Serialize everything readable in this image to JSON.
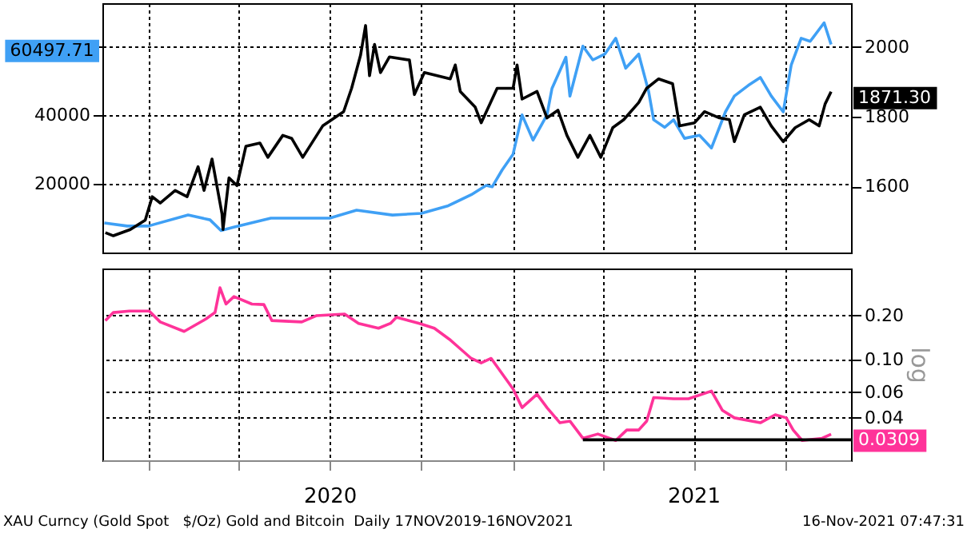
{
  "chart_data": [
    {
      "type": "line",
      "xlim": [
        "2019-11-16",
        "2021-12-06"
      ],
      "xticks": [
        {
          "value": "2020-01-01",
          "label": null
        },
        {
          "value": "2020-04-01",
          "label": null
        },
        {
          "value": "2020-07-01",
          "label": null
        },
        {
          "value": "2020-10-01",
          "label": null
        },
        {
          "value": "2021-01-01",
          "label": null
        },
        {
          "value": "2021-04-01",
          "label": null
        },
        {
          "value": "2021-07-01",
          "label": null
        },
        {
          "value": "2021-10-01",
          "label": null
        }
      ],
      "ylim": [
        0,
        72500
      ],
      "yticks": [
        20000,
        40000,
        {
          "value": 60000,
          "label": null
        }
      ],
      "y2lim": [
        1410,
        2125
      ],
      "y2ticks": [
        1600,
        1800,
        2000
      ],
      "grid": true,
      "tick_labels": "y",
      "series": [
        {
          "color": "#3fa0f5",
          "axis": "y",
          "x": [
            "2019-11-18",
            "2019-12-11",
            "2020-01-01",
            "2020-02-10",
            "2020-03-03",
            "2020-03-14",
            "2020-03-26",
            "2020-05-03",
            "2020-07-01",
            "2020-07-28",
            "2020-09-02",
            "2020-10-01",
            "2020-10-28",
            "2020-11-20",
            "2020-12-05",
            "2020-12-11",
            "2020-12-21",
            "2021-01-01",
            "2021-01-10",
            "2021-01-21",
            "2021-02-04",
            "2021-02-09",
            "2021-02-23",
            "2021-02-27",
            "2021-03-12",
            "2021-03-22",
            "2021-04-03",
            "2021-04-14",
            "2021-04-24",
            "2021-05-07",
            "2021-05-17",
            "2021-05-22",
            "2021-06-02",
            "2021-06-11",
            "2021-06-22",
            "2021-07-07",
            "2021-07-19",
            "2021-08-02",
            "2021-08-11",
            "2021-08-25",
            "2021-09-06",
            "2021-09-17",
            "2021-09-29",
            "2021-10-07",
            "2021-10-17",
            "2021-10-26",
            "2021-11-09",
            "2021-11-16"
          ],
          "values": [
            8600,
            7700,
            7700,
            10900,
            9500,
            6400,
            7300,
            10000,
            10000,
            12300,
            10900,
            11400,
            13600,
            16800,
            19500,
            19100,
            24000,
            28600,
            40000,
            32700,
            40000,
            47700,
            56800,
            45500,
            60000,
            56000,
            57700,
            62300,
            53600,
            57700,
            46800,
            38600,
            36400,
            38600,
            33200,
            34100,
            30400,
            40900,
            45500,
            48600,
            50900,
            45500,
            40900,
            54500,
            62300,
            61400,
            66800,
            60497.71
          ]
        },
        {
          "color": "#000000",
          "axis": "y2",
          "x": [
            "2019-11-19",
            "2019-11-27",
            "2019-12-14",
            "2019-12-29",
            "2020-01-05",
            "2020-01-13",
            "2020-01-28",
            "2020-02-09",
            "2020-02-20",
            "2020-02-26",
            "2020-03-05",
            "2020-03-15",
            "2020-03-16",
            "2020-03-22",
            "2020-03-30",
            "2020-04-08",
            "2020-04-22",
            "2020-04-30",
            "2020-05-15",
            "2020-05-24",
            "2020-06-04",
            "2020-06-24",
            "2020-07-15",
            "2020-07-23",
            "2020-08-01",
            "2020-08-06",
            "2020-08-10",
            "2020-08-15",
            "2020-08-21",
            "2020-08-30",
            "2020-09-19",
            "2020-09-24",
            "2020-10-04",
            "2020-10-30",
            "2020-11-04",
            "2020-11-09",
            "2020-11-24",
            "2020-11-30",
            "2020-12-16",
            "2021-01-01",
            "2021-01-05",
            "2021-01-10",
            "2021-01-25",
            "2021-02-04",
            "2021-02-15",
            "2021-02-24",
            "2021-03-07",
            "2021-03-19",
            "2021-03-30",
            "2021-04-11",
            "2021-04-22",
            "2021-05-07",
            "2021-05-15",
            "2021-05-27",
            "2021-06-10",
            "2021-06-17",
            "2021-07-02",
            "2021-07-12",
            "2021-07-27",
            "2021-08-06",
            "2021-08-11",
            "2021-08-21",
            "2021-09-06",
            "2021-09-17",
            "2021-09-29",
            "2021-10-11",
            "2021-10-25",
            "2021-11-04",
            "2021-11-10",
            "2021-11-16"
          ],
          "values": [
            1467,
            1458,
            1476,
            1503,
            1570,
            1552,
            1588,
            1570,
            1656,
            1588,
            1678,
            1521,
            1476,
            1624,
            1602,
            1715,
            1724,
            1683,
            1746,
            1737,
            1683,
            1773,
            1814,
            1881,
            1976,
            2061,
            1917,
            2007,
            1926,
            1971,
            1962,
            1863,
            1926,
            1908,
            1948,
            1872,
            1827,
            1782,
            1881,
            1881,
            1948,
            1850,
            1872,
            1796,
            1818,
            1746,
            1683,
            1746,
            1683,
            1768,
            1791,
            1840,
            1881,
            1908,
            1894,
            1773,
            1782,
            1814,
            1796,
            1791,
            1728,
            1805,
            1827,
            1773,
            1728,
            1768,
            1791,
            1773,
            1836,
            1871.3
          ]
        }
      ],
      "annotations": [
        "60497.71",
        "1871.30"
      ]
    },
    {
      "type": "line",
      "xlim": [
        "2019-11-16",
        "2021-12-06"
      ],
      "xticks": [
        {
          "value": "2020-01-01",
          "label": null
        },
        {
          "value": "2020-04-01",
          "label": null
        },
        {
          "value": "2020-07-01",
          "label": "2020"
        },
        {
          "value": "2020-10-01",
          "label": null
        },
        {
          "value": "2021-01-01",
          "label": null
        },
        {
          "value": "2021-04-01",
          "label": null
        },
        {
          "value": "2021-07-01",
          "label": "2021"
        },
        {
          "value": "2021-10-01",
          "label": null
        }
      ],
      "y2lim": [
        0.0205,
        0.42
      ],
      "y2ticks": [
        {
          "value": 0.2,
          "label": "0.20"
        },
        {
          "value": 0.1,
          "label": "0.10"
        },
        {
          "value": 0.06,
          "label": "0.06"
        },
        {
          "value": 0.04,
          "label": "0.04"
        }
      ],
      "log": "y2",
      "y2label": "log",
      "grid": true,
      "series": [
        {
          "color": "#ff3399",
          "axis": "y2",
          "x": [
            "2019-11-19",
            "2019-11-27",
            "2019-12-13",
            "2020-01-02",
            "2020-01-13",
            "2020-02-06",
            "2020-02-28",
            "2020-03-08",
            "2020-03-13",
            "2020-03-19",
            "2020-03-27",
            "2020-04-14",
            "2020-04-26",
            "2020-05-04",
            "2020-06-03",
            "2020-06-18",
            "2020-07-16",
            "2020-07-30",
            "2020-08-19",
            "2020-08-31",
            "2020-09-06",
            "2020-09-29",
            "2020-10-14",
            "2020-10-29",
            "2020-11-07",
            "2020-11-20",
            "2020-11-30",
            "2020-12-10",
            "2021-01-01",
            "2021-01-10",
            "2021-01-25",
            "2021-02-04",
            "2021-02-17",
            "2021-02-27",
            "2021-03-12",
            "2021-03-27",
            "2021-04-14",
            "2021-04-25",
            "2021-05-07",
            "2021-05-15",
            "2021-05-22",
            "2021-06-11",
            "2021-06-26",
            "2021-07-19",
            "2021-07-30",
            "2021-08-11",
            "2021-09-06",
            "2021-09-21",
            "2021-10-02",
            "2021-10-09",
            "2021-10-18",
            "2021-11-07",
            "2021-11-16"
          ],
          "values": [
            0.185,
            0.21,
            0.215,
            0.215,
            0.181,
            0.156,
            0.19,
            0.21,
            0.31,
            0.24,
            0.27,
            0.24,
            0.238,
            0.185,
            0.181,
            0.2,
            0.205,
            0.177,
            0.164,
            0.177,
            0.195,
            0.177,
            0.164,
            0.138,
            0.122,
            0.102,
            0.095,
            0.102,
            0.063,
            0.047,
            0.058,
            0.047,
            0.037,
            0.038,
            0.029,
            0.031,
            0.028,
            0.033,
            0.033,
            0.038,
            0.055,
            0.054,
            0.054,
            0.061,
            0.045,
            0.04,
            0.037,
            0.042,
            0.04,
            0.033,
            0.028,
            0.029,
            0.0309
          ]
        },
        {
          "type": "line",
          "color": "#000000",
          "axis": "y2",
          "x": [
            "2021-03-12",
            "2021-12-06"
          ],
          "values": [
            0.0283,
            0.0283
          ]
        }
      ],
      "annotations": [
        "0.0309",
        "XAU Curncy (Gold Spot   $/Oz) Gold and Bitcoin  Daily 17NOV2019-16NOV2021",
        "16-Nov-2021 07:47:31"
      ]
    }
  ]
}
